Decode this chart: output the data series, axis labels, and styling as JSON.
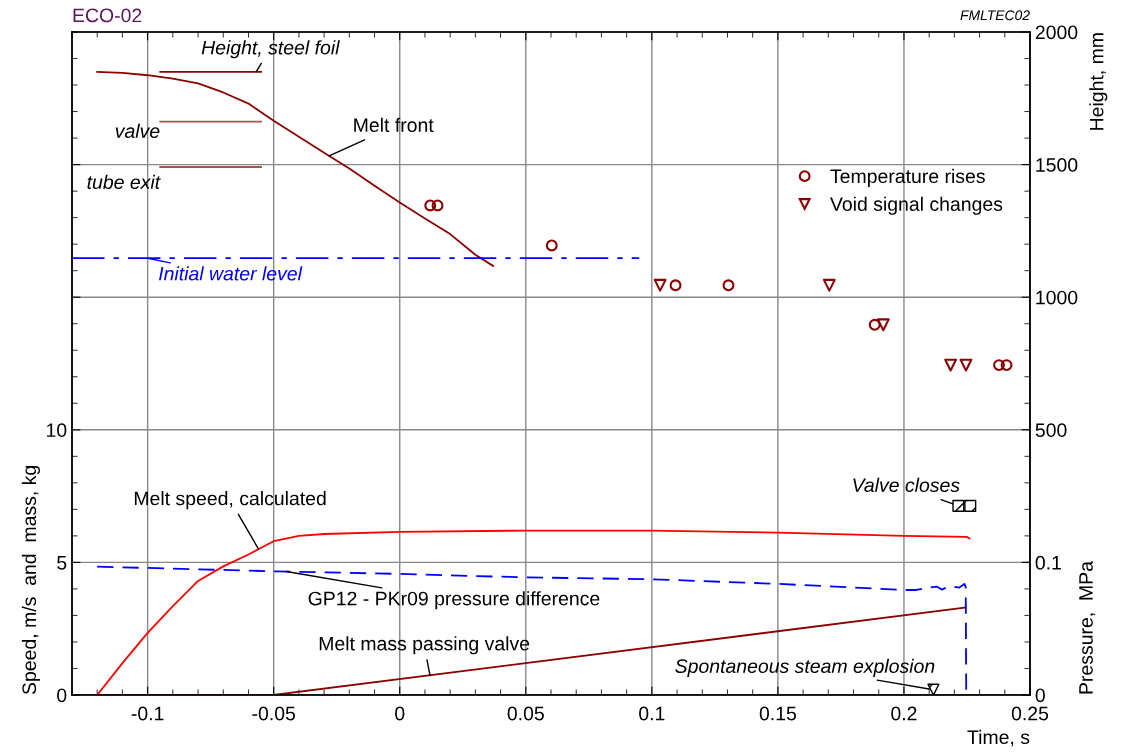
{
  "chart_data": {
    "type": "line",
    "title": "ECO-02",
    "subtitle": "FMLTEC02",
    "xlabel": "Time, s",
    "ylabel": "Speed, m/s  and  mass, kg",
    "y2label": "Height, mm",
    "y3label": "Pressure,  MPa",
    "xlim": [
      -0.13,
      0.25
    ],
    "xticks": [
      -0.1,
      -0.05,
      0,
      0.05,
      0.1,
      0.15,
      0.2,
      0.25
    ],
    "ylim": [
      0,
      25
    ],
    "yticks": [
      0,
      5,
      10,
      {
        "value": 15,
        "label": null
      },
      {
        "value": 20,
        "label": null
      }
    ],
    "y2lim": [
      -500,
      2000
    ],
    "y2ticks": [
      500,
      1000,
      1500,
      2000
    ],
    "y3lim": [
      0,
      0.5
    ],
    "y3ticks": [
      0,
      0.1
    ],
    "grid": true,
    "legend": "top right",
    "series": [
      {
        "name": "Temperature rises",
        "type": "scatter",
        "axis": "y2",
        "marker": "circle",
        "color": "#8b0000",
        "x": [
          0.0121,
          0.015,
          0.0603,
          0.1094,
          0.1304,
          0.1884,
          0.2377,
          0.2407
        ],
        "values": [
          1346,
          1346,
          1195,
          1045,
          1045,
          896,
          744,
          744
        ]
      },
      {
        "name": "Void signal changes",
        "type": "scatter",
        "axis": "y2",
        "marker": "triangle",
        "color": "#8b0000",
        "x": [
          0.1033,
          0.1704,
          0.1918,
          0.2185,
          0.2246
        ],
        "values": [
          1045,
          1045,
          896,
          744,
          744
        ]
      },
      {
        "name": "Melt front",
        "axis": "y2",
        "color": "#8b0000",
        "x": [
          -0.12,
          -0.11,
          -0.1,
          -0.09,
          -0.08,
          -0.07,
          -0.06,
          -0.05,
          -0.04,
          -0.03,
          -0.02,
          -0.01,
          0,
          0.01,
          0.02,
          0.03,
          0.037
        ],
        "values": [
          1850,
          1846,
          1837,
          1824,
          1806,
          1772,
          1730,
          1665,
          1605,
          1545,
          1485,
          1420,
          1357,
          1297,
          1238,
          1160,
          1118
        ]
      },
      {
        "name": "Height, steel foil",
        "axis": "y2",
        "color": "#8b0000",
        "x": [
          -0.095,
          -0.055
        ],
        "values": [
          1850,
          1850
        ]
      },
      {
        "name": "valve",
        "axis": "y2",
        "color": "#b05050",
        "x": [
          -0.095,
          -0.055
        ],
        "values": [
          1662,
          1662
        ]
      },
      {
        "name": "tube exit",
        "axis": "y2",
        "color": "#b05050",
        "x": [
          -0.095,
          -0.055
        ],
        "values": [
          1491,
          1491
        ]
      },
      {
        "name": "Initial water level",
        "axis": "y2",
        "line_style": "dashdot",
        "color": "#0000ff",
        "x": [
          -0.13,
          0.095
        ],
        "values": [
          1147,
          1147
        ]
      },
      {
        "name": "Melt speed, calculated",
        "color": "#ff0000",
        "x": [
          -0.12,
          -0.11,
          -0.1,
          -0.09,
          -0.08,
          -0.07,
          -0.06,
          -0.055,
          -0.05,
          -0.04,
          -0.03,
          0,
          0.05,
          0.1,
          0.15,
          0.2,
          0.225,
          0.226
        ],
        "values": [
          0,
          1.2,
          2.34,
          3.35,
          4.3,
          4.85,
          5.3,
          5.55,
          5.8,
          6.0,
          6.07,
          6.15,
          6.2,
          6.2,
          6.12,
          6.0,
          5.96,
          5.9
        ]
      },
      {
        "name": "GP12 - PKr09 pressure difference",
        "axis": "y3",
        "line_style": "dashed",
        "color": "#0000ff",
        "x": [
          -0.12,
          -0.05,
          0,
          0.05,
          0.1,
          0.15,
          0.2,
          0.205,
          0.21,
          0.213,
          0.215,
          0.218,
          0.222,
          0.224,
          0.2245,
          0.2247
        ],
        "values": [
          0.0968,
          0.0933,
          0.0913,
          0.0887,
          0.0873,
          0.0838,
          0.0792,
          0.0792,
          0.081,
          0.0818,
          0.0795,
          0.082,
          0.081,
          0.0838,
          0.0815,
          0
        ]
      },
      {
        "name": "Melt mass passing valve",
        "color": "#8b0000",
        "x": [
          -0.12,
          -0.05,
          0.2245
        ],
        "values": [
          0,
          0,
          3.3
        ]
      },
      {
        "name": "Valve closes",
        "type": "scatter",
        "marker": "square",
        "color": "#000000",
        "x": [
          0.2216,
          0.2263
        ],
        "values": [
          7.13,
          7.13
        ]
      },
      {
        "name": "Spontaneous steam explosion",
        "type": "scatter",
        "marker": "triangle",
        "color": "#000000",
        "x": [
          0.2117
        ],
        "values": [
          0.2
        ]
      }
    ]
  }
}
